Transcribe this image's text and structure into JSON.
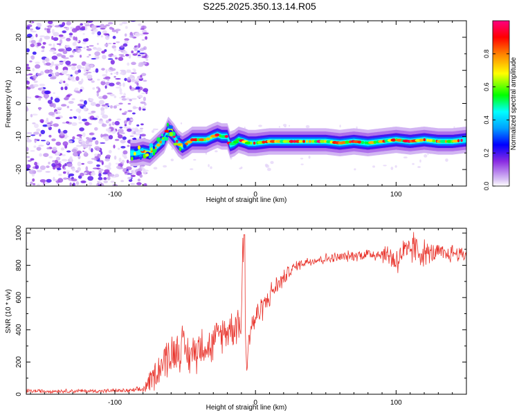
{
  "title": "S225.2025.350.13.14.R05",
  "colors": {
    "snr_line": "#e8322a",
    "axis": "#000000",
    "background": "#ffffff"
  },
  "chart_data": [
    {
      "type": "heatmap",
      "xlabel": "Height of straight line (km)",
      "ylabel": "Frequency (Hz)",
      "xlim": [
        -163,
        150
      ],
      "ylim": [
        -25,
        25
      ],
      "xticks": [
        -100,
        0,
        100
      ],
      "yticks": [
        -20,
        -10,
        0,
        10,
        20
      ],
      "grid": false,
      "colorbar": {
        "label": "Normalized spectral amplitude",
        "range": [
          0,
          1
        ],
        "ticks": [
          0.0,
          0.2,
          0.4,
          0.6,
          0.8
        ],
        "tick_labels": [
          "0.0",
          "0.2",
          "0.4",
          "0.6",
          "0.8"
        ],
        "colormap": "rainbow (violet-blue-cyan-green-yellow-orange-red-magenta)",
        "placement": "right"
      },
      "noise_region_x_upper": -85,
      "signal_ridge": {
        "x": [
          -89,
          -85,
          -80,
          -75,
          -70,
          -65,
          -62,
          -58,
          -55,
          -52,
          -48,
          -45,
          -40,
          -35,
          -30,
          -27,
          -24,
          -20,
          -18,
          -15,
          -12,
          -8,
          -5,
          0,
          10,
          20,
          30,
          40,
          50,
          60,
          70,
          80,
          90,
          100,
          110,
          120,
          130,
          140,
          150
        ],
        "frequency_hz": [
          -15,
          -15,
          -14.5,
          -15,
          -13,
          -11,
          -8,
          -10,
          -12,
          -13,
          -12,
          -11,
          -11,
          -11,
          -10,
          -9.5,
          -10,
          -10,
          -12.5,
          -12,
          -11,
          -11.5,
          -12,
          -12,
          -11.5,
          -11.5,
          -11.5,
          -11.5,
          -11.5,
          -12,
          -11.5,
          -12,
          -11.5,
          -11,
          -11.5,
          -11,
          -11.5,
          -11.5,
          -11
        ]
      }
    },
    {
      "type": "line",
      "xlabel": "Height of straight line (km)",
      "ylabel": "SNR (10 * v/v)",
      "xlim": [
        -163,
        150
      ],
      "ylim": [
        0,
        1030
      ],
      "xticks": [
        -100,
        0,
        100
      ],
      "yticks": [
        0,
        200,
        400,
        600,
        800,
        1000
      ],
      "grid": false,
      "series": [
        {
          "color": "#e8322a",
          "x": [
            -163,
            -150,
            -140,
            -130,
            -120,
            -110,
            -100,
            -90,
            -85,
            -80,
            -77,
            -72,
            -68,
            -64,
            -60,
            -56,
            -52,
            -48,
            -44,
            -40,
            -36,
            -32,
            -28,
            -24,
            -20,
            -16,
            -12,
            -10,
            -9,
            -8,
            -7,
            -6,
            -4,
            0,
            4,
            8,
            12,
            16,
            20,
            25,
            30,
            35,
            40,
            50,
            60,
            70,
            80,
            90,
            96,
            100,
            104,
            108,
            112,
            116,
            120,
            125,
            130,
            135,
            140,
            145,
            150
          ],
          "y": [
            20,
            20,
            20,
            20,
            20,
            20,
            22,
            22,
            25,
            30,
            60,
            120,
            170,
            220,
            250,
            280,
            300,
            240,
            260,
            300,
            320,
            280,
            350,
            380,
            400,
            420,
            450,
            440,
            990,
            400,
            350,
            150,
            420,
            470,
            530,
            580,
            640,
            680,
            720,
            770,
            800,
            820,
            830,
            840,
            850,
            860,
            870,
            870,
            860,
            820,
            880,
            860,
            920,
            880,
            880,
            870,
            880,
            860,
            880,
            870,
            870
          ],
          "noise_amplitude": [
            15,
            15,
            15,
            15,
            15,
            15,
            15,
            15,
            20,
            30,
            60,
            110,
            130,
            150,
            160,
            170,
            160,
            150,
            160,
            170,
            150,
            140,
            130,
            140,
            140,
            150,
            150,
            150,
            60,
            150,
            150,
            80,
            140,
            110,
            100,
            90,
            80,
            80,
            60,
            50,
            40,
            40,
            40,
            40,
            40,
            40,
            50,
            60,
            100,
            120,
            120,
            130,
            130,
            120,
            100,
            80,
            70,
            70,
            70,
            60,
            60
          ]
        }
      ]
    }
  ]
}
